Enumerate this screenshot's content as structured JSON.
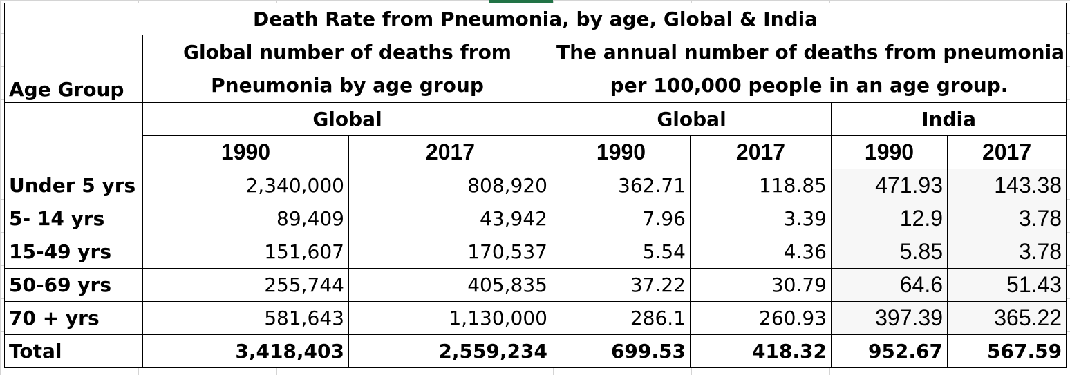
{
  "title": "Death Rate from Pneumonia, by age, Global & India",
  "headers": {
    "age_group": "Age Group",
    "global_deaths_line1": "Global number of deaths from",
    "global_deaths_line2": "Pneumonia by age group",
    "rate_line1": "The annual number of deaths from pneumonia",
    "rate_line2": "per 100,000 people in an age group.",
    "region_global_1": "Global",
    "region_global_2": "Global",
    "region_india": "India",
    "years": [
      "1990",
      "2017",
      "1990",
      "2017",
      "1990",
      "2017"
    ]
  },
  "rows": [
    {
      "label": "Under 5 yrs",
      "values": [
        "2,340,000",
        "808,920",
        "362.71",
        "118.85",
        "471.93",
        "143.38"
      ]
    },
    {
      "label": "5- 14 yrs",
      "values": [
        "89,409",
        "43,942",
        "7.96",
        "3.39",
        "12.9",
        "3.78"
      ]
    },
    {
      "label": "15-49 yrs",
      "values": [
        "151,607",
        "170,537",
        "5.54",
        "4.36",
        "5.85",
        "3.78"
      ]
    },
    {
      "label": "50-69 yrs",
      "values": [
        "255,744",
        "405,835",
        "37.22",
        "30.79",
        "64.6",
        "51.43"
      ]
    },
    {
      "label": "70 + yrs",
      "values": [
        "581,643",
        "1,130,000",
        "286.1",
        "260.93",
        "397.39",
        "365.22"
      ]
    }
  ],
  "total": {
    "label": "Total",
    "values": [
      "3,418,403",
      "2,559,234",
      "699.53",
      "418.32",
      "952.67",
      "567.59"
    ]
  }
}
